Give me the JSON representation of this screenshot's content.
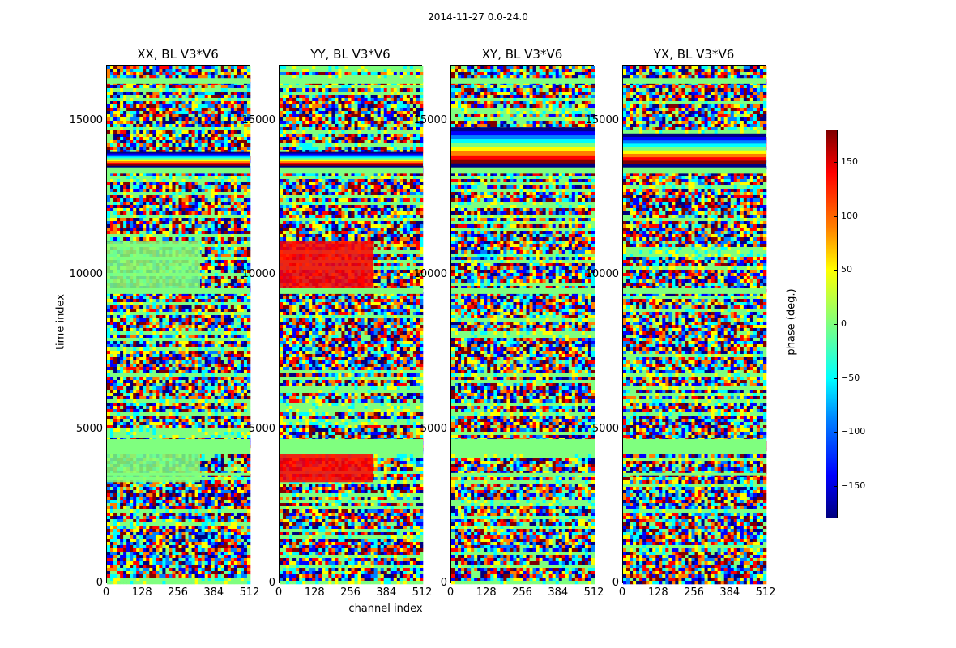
{
  "chart_data": {
    "type": "heatmap",
    "suptitle": "2014-11-27 0.0-24.0",
    "xlabel": "channel index",
    "ylabel": "time index",
    "colorbar_label": "phase (deg.)",
    "colorbar_range": [
      -180,
      180
    ],
    "colorbar_ticks": [
      "150",
      "100",
      "50",
      "0",
      "−50",
      "−100",
      "−150"
    ],
    "colorbar_tick_values": [
      150,
      100,
      50,
      0,
      -50,
      -100,
      -150
    ],
    "colormap": [
      "#00007f",
      "#0000ff",
      "#007fff",
      "#00ffff",
      "#7fff7f",
      "#ffff00",
      "#ff7f00",
      "#ff0000",
      "#7f0000"
    ],
    "xlim": [
      0,
      512
    ],
    "ylim": [
      0,
      16800
    ],
    "xticks": [
      "0",
      "128",
      "256",
      "384",
      "512"
    ],
    "xtick_values": [
      0,
      128,
      256,
      384,
      512
    ],
    "yticks": [
      "0",
      "5000",
      "10000",
      "15000"
    ],
    "ytick_values": [
      0,
      5000,
      10000,
      15000
    ],
    "panels": [
      {
        "title": "XX, BL V3*V6",
        "flagged_bands": [
          [
            3500,
            3600
          ],
          [
            4200,
            4700
          ],
          [
            9400,
            9600
          ],
          [
            13300,
            13500
          ],
          [
            16200,
            16400
          ]
        ],
        "coherent_bands": [
          [
            13500,
            14000
          ],
          [
            9600,
            11100,
            0
          ],
          [
            3300,
            4200,
            0
          ]
        ]
      },
      {
        "title": "YY, BL V3*V6",
        "flagged_bands": [
          [
            4200,
            4700
          ],
          [
            9400,
            9600
          ],
          [
            13300,
            13500
          ],
          [
            16200,
            16400
          ]
        ],
        "coherent_bands": [
          [
            13500,
            14000
          ],
          [
            9600,
            11100,
            1
          ],
          [
            3300,
            4200,
            1
          ]
        ]
      },
      {
        "title": "XY, BL V3*V6",
        "flagged_bands": [
          [
            3500,
            3600
          ],
          [
            4200,
            4700
          ],
          [
            9400,
            9600
          ],
          [
            13300,
            13500
          ],
          [
            16200,
            16400
          ]
        ],
        "coherent_bands": [
          [
            13500,
            14800
          ]
        ]
      },
      {
        "title": "YX, BL V3*V6",
        "flagged_bands": [
          [
            3500,
            3600
          ],
          [
            4200,
            4700
          ],
          [
            9400,
            9600
          ],
          [
            13300,
            13500
          ],
          [
            16200,
            16400
          ]
        ],
        "coherent_bands": [
          [
            13500,
            14600
          ]
        ]
      }
    ]
  }
}
